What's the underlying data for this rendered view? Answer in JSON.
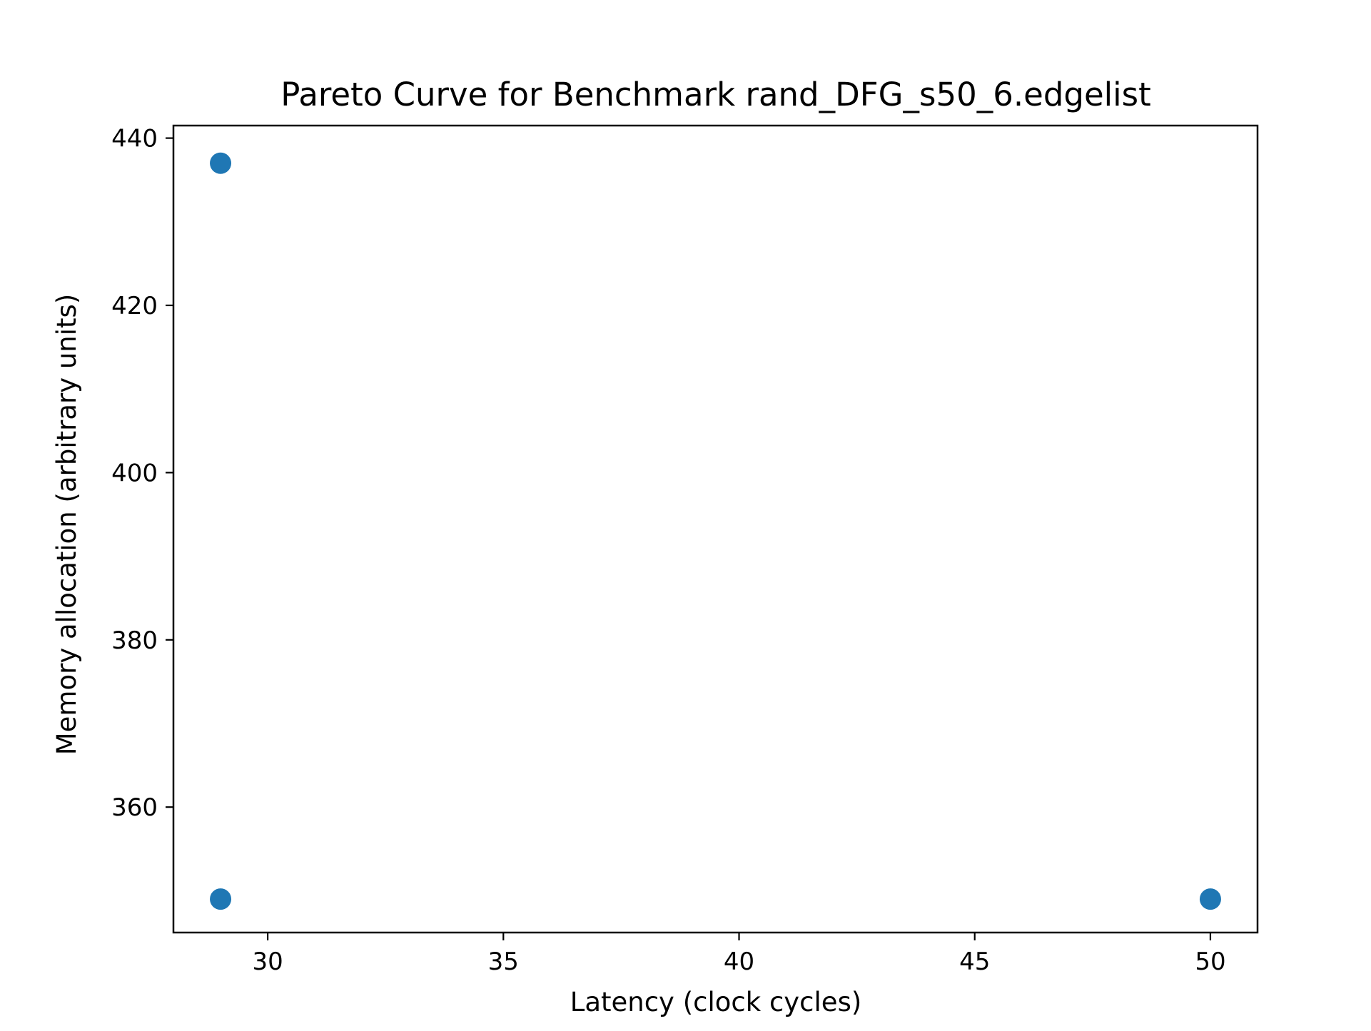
{
  "chart_data": {
    "type": "scatter",
    "title": "Pareto Curve for Benchmark rand_DFG_s50_6.edgelist",
    "xlabel": "Latency (clock cycles)",
    "ylabel": "Memory allocation (arbitrary units)",
    "xlim": [
      28,
      51
    ],
    "ylim": [
      345,
      441.5
    ],
    "xticks": [
      30,
      35,
      40,
      45,
      50
    ],
    "yticks": [
      360,
      380,
      400,
      420,
      440
    ],
    "grid": false,
    "marker_color": "#1f77b4",
    "points": [
      {
        "x": 29,
        "y": 437
      },
      {
        "x": 29,
        "y": 349
      },
      {
        "x": 50,
        "y": 349
      }
    ]
  }
}
